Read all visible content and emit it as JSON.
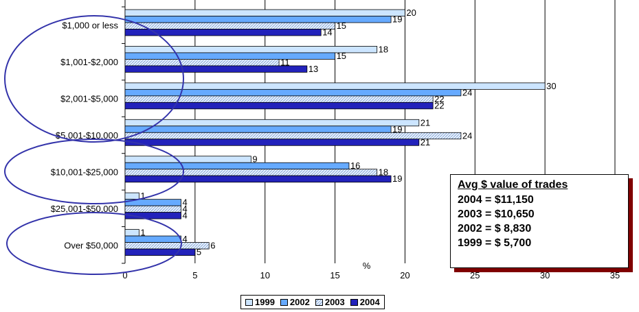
{
  "chart_data": {
    "type": "bar",
    "orientation": "horizontal",
    "categories": [
      "$1,000 or less",
      "$1,001-$2,000",
      "$2,001-$5,000",
      "$5,001-$10,000",
      "$10,001-$25,000",
      "$25,001-$50,000",
      "Over $50,000"
    ],
    "series": [
      {
        "name": "1999",
        "values": [
          20,
          18,
          30,
          21,
          9,
          1,
          1
        ],
        "color": "#CCE5FF",
        "pattern": "light"
      },
      {
        "name": "2002",
        "values": [
          19,
          15,
          24,
          19,
          16,
          4,
          4
        ],
        "color": "#66AAFF",
        "pattern": "solid"
      },
      {
        "name": "2003",
        "values": [
          15,
          11,
          22,
          24,
          18,
          4,
          6
        ],
        "color": "#DDEEFF",
        "pattern": "hatched"
      },
      {
        "name": "2004",
        "values": [
          14,
          13,
          22,
          21,
          19,
          4,
          5
        ],
        "color": "#2222BB",
        "pattern": "solid"
      }
    ],
    "xlabel": "%",
    "xlim": [
      0,
      35
    ],
    "xticks": [
      0,
      5,
      10,
      15,
      20,
      25,
      30,
      35
    ],
    "grid": "vertical",
    "legend": "bottom"
  },
  "callout": {
    "title": "Avg $ value of trades",
    "lines": [
      "2004 = $11,150",
      "2003 = $10,650",
      "2002 = $ 8,830",
      "1999 = $ 5,700"
    ]
  },
  "annotation_color": "#3333AA"
}
